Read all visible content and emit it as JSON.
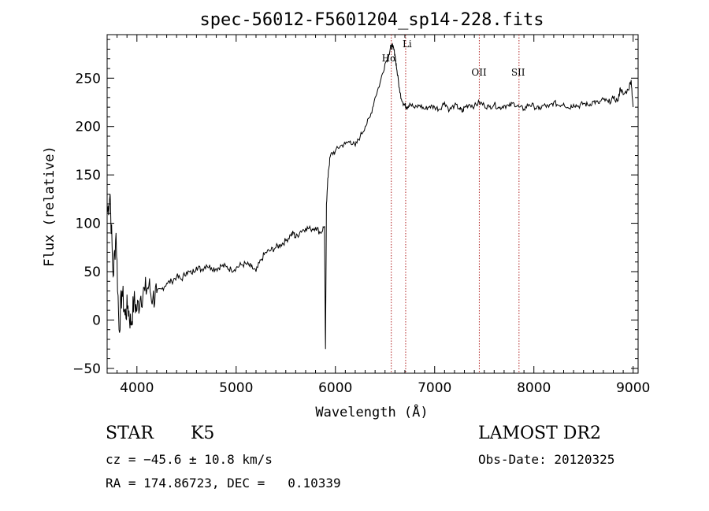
{
  "chart_data": {
    "type": "line",
    "title": "spec-56012-F5601204_sp14-228.fits",
    "xlabel": "Wavelength (Å)",
    "ylabel": "Flux (relative)",
    "xlim": [
      3700,
      9050
    ],
    "ylim": [
      -55,
      295
    ],
    "x_ticks": [
      4000,
      5000,
      6000,
      7000,
      8000,
      9000
    ],
    "y_ticks": [
      -50,
      0,
      50,
      100,
      150,
      200,
      250
    ],
    "grid": false,
    "series": [
      {
        "x": [
          3700,
          3730,
          3760,
          3790,
          3820,
          3850,
          3880,
          3910,
          3940,
          3970,
          4000,
          4040,
          4080,
          4120,
          4160,
          4200,
          4250,
          4300,
          4350,
          4400,
          4450,
          4500,
          4550,
          4600,
          4650,
          4700,
          4750,
          4800,
          4850,
          4900,
          4950,
          5000,
          5050,
          5100,
          5150,
          5200,
          5250,
          5300,
          5350,
          5400,
          5450,
          5500,
          5550,
          5580,
          5600,
          5650,
          5700,
          5750,
          5800,
          5850,
          5890,
          5900,
          5910,
          5930,
          5950,
          6000,
          6050,
          6100,
          6150,
          6200,
          6250,
          6300,
          6350,
          6400,
          6450,
          6500,
          6540,
          6560,
          6580,
          6600,
          6620,
          6650,
          6680,
          6700,
          6720,
          6750,
          6800,
          6850,
          6900,
          6950,
          7000,
          7050,
          7100,
          7150,
          7200,
          7250,
          7280,
          7300,
          7350,
          7400,
          7450,
          7500,
          7550,
          7600,
          7650,
          7700,
          7750,
          7800,
          7850,
          7900,
          7950,
          8000,
          8050,
          8100,
          8150,
          8200,
          8250,
          8300,
          8350,
          8400,
          8450,
          8500,
          8550,
          8600,
          8650,
          8700,
          8750,
          8800,
          8850,
          8870,
          8900,
          8950,
          8980,
          9000
        ],
        "y": [
          110,
          130,
          45,
          90,
          -10,
          30,
          5,
          15,
          -5,
          20,
          10,
          25,
          30,
          35,
          22,
          28,
          32,
          38,
          40,
          45,
          42,
          50,
          48,
          55,
          52,
          57,
          54,
          53,
          56,
          55,
          52,
          54,
          57,
          58,
          55,
          50,
          62,
          70,
          72,
          75,
          78,
          82,
          88,
          90,
          85,
          92,
          95,
          94,
          96,
          90,
          97,
          -30,
          120,
          155,
          170,
          175,
          180,
          182,
          185,
          180,
          190,
          200,
          210,
          230,
          245,
          265,
          275,
          283,
          282,
          275,
          258,
          235,
          225,
          222,
          220,
          224,
          219,
          222,
          218,
          221,
          220,
          218,
          225,
          217,
          222,
          219,
          215,
          220,
          223,
          221,
          225,
          222,
          220,
          223,
          219,
          222,
          221,
          224,
          220,
          218,
          223,
          221,
          218,
          222,
          220,
          225,
          222,
          224,
          219,
          223,
          221,
          224,
          222,
          226,
          224,
          228,
          225,
          229,
          227,
          240,
          233,
          238,
          248,
          220
        ]
      }
    ],
    "annotations": [
      {
        "label": "Hα",
        "x": 6563
      },
      {
        "label": "Li",
        "x": 6708
      },
      {
        "label": "OII",
        "x": 7450
      },
      {
        "label": "SII",
        "x": 7850
      }
    ]
  },
  "info": {
    "object_type": "STAR",
    "spectral_class": "K5",
    "survey": "LAMOST DR2",
    "cz": "cz = −45.6 ± 10.8 km/s",
    "obs_date": "Obs-Date: 20120325",
    "coords": "RA = 174.86723, DEC =   0.10339"
  }
}
